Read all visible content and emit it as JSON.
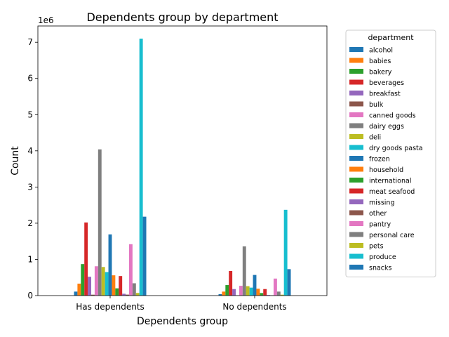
{
  "chart_data": {
    "type": "bar",
    "title": "Dependents group by department",
    "xlabel": "Dependents group",
    "ylabel": "Count",
    "y_multiplier_label": "1e6",
    "ylim": [
      0,
      7450000
    ],
    "yticks": [
      0,
      1000000,
      2000000,
      3000000,
      4000000,
      5000000,
      6000000,
      7000000
    ],
    "ytick_labels": [
      "0",
      "1",
      "2",
      "3",
      "4",
      "5",
      "6",
      "7"
    ],
    "grid": false,
    "legend_position": "right-outside",
    "legend_title": "department",
    "categories": [
      "Has dependents",
      "No dependents"
    ],
    "series": [
      {
        "name": "alcohol",
        "color": "#1f77b4",
        "values": [
          110000,
          40000
        ]
      },
      {
        "name": "babies",
        "color": "#ff7f0e",
        "values": [
          330000,
          110000
        ]
      },
      {
        "name": "bakery",
        "color": "#2ca02c",
        "values": [
          870000,
          290000
        ]
      },
      {
        "name": "beverages",
        "color": "#d62728",
        "values": [
          2020000,
          680000
        ]
      },
      {
        "name": "breakfast",
        "color": "#9467bd",
        "values": [
          520000,
          180000
        ]
      },
      {
        "name": "bulk",
        "color": "#8c564b",
        "values": [
          25000,
          9000
        ]
      },
      {
        "name": "canned goods",
        "color": "#e377c2",
        "values": [
          810000,
          270000
        ]
      },
      {
        "name": "dairy eggs",
        "color": "#7f7f7f",
        "values": [
          4040000,
          1360000
        ]
      },
      {
        "name": "deli",
        "color": "#bcbd22",
        "values": [
          790000,
          260000
        ]
      },
      {
        "name": "dry goods pasta",
        "color": "#17becf",
        "values": [
          650000,
          220000
        ]
      },
      {
        "name": "frozen",
        "color": "#1f77b4",
        "values": [
          1690000,
          570000
        ]
      },
      {
        "name": "household",
        "color": "#ff7f0e",
        "values": [
          560000,
          190000
        ]
      },
      {
        "name": "international",
        "color": "#2ca02c",
        "values": [
          200000,
          70000
        ]
      },
      {
        "name": "meat seafood",
        "color": "#d62728",
        "values": [
          540000,
          180000
        ]
      },
      {
        "name": "missing",
        "color": "#9467bd",
        "values": [
          50000,
          17000
        ]
      },
      {
        "name": "other",
        "color": "#8c564b",
        "values": [
          27000,
          9000
        ]
      },
      {
        "name": "pantry",
        "color": "#e377c2",
        "values": [
          1420000,
          470000
        ]
      },
      {
        "name": "personal care",
        "color": "#7f7f7f",
        "values": [
          340000,
          110000
        ]
      },
      {
        "name": "pets",
        "color": "#bcbd22",
        "values": [
          72000,
          25000
        ]
      },
      {
        "name": "produce",
        "color": "#17becf",
        "values": [
          7100000,
          2370000
        ]
      },
      {
        "name": "snacks",
        "color": "#1f77b4",
        "values": [
          2180000,
          730000
        ]
      }
    ]
  }
}
